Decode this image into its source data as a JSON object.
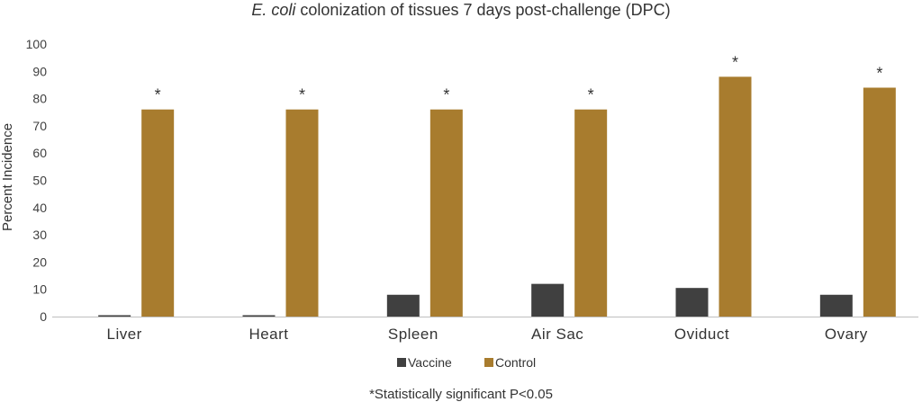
{
  "chart_data": {
    "type": "bar",
    "title_italic": "E. coli",
    "title_rest": " colonization of tissues 7 days post-challenge (DPC)",
    "ylabel": "Percent Incidence",
    "xlabel": "",
    "categories": [
      "Liver",
      "Heart",
      "Spleen",
      "Air Sac",
      "Oviduct",
      "Ovary"
    ],
    "series": [
      {
        "name": "Vaccine",
        "color": "#404040",
        "values": [
          0.5,
          0.5,
          8,
          12,
          10.5,
          8
        ]
      },
      {
        "name": "Control",
        "color": "#A87C2E",
        "values": [
          76,
          76,
          76,
          76,
          88,
          84
        ]
      }
    ],
    "significance_marker": "*",
    "significant_categories": [
      "Liver",
      "Heart",
      "Spleen",
      "Air Sac",
      "Oviduct",
      "Ovary"
    ],
    "ylim": [
      0,
      100
    ],
    "yticks": [
      0,
      10,
      20,
      30,
      40,
      50,
      60,
      70,
      80,
      90,
      100
    ],
    "grid": false,
    "legend_position": "bottom-center",
    "footnote": "*Statistically significant P<0.05"
  }
}
